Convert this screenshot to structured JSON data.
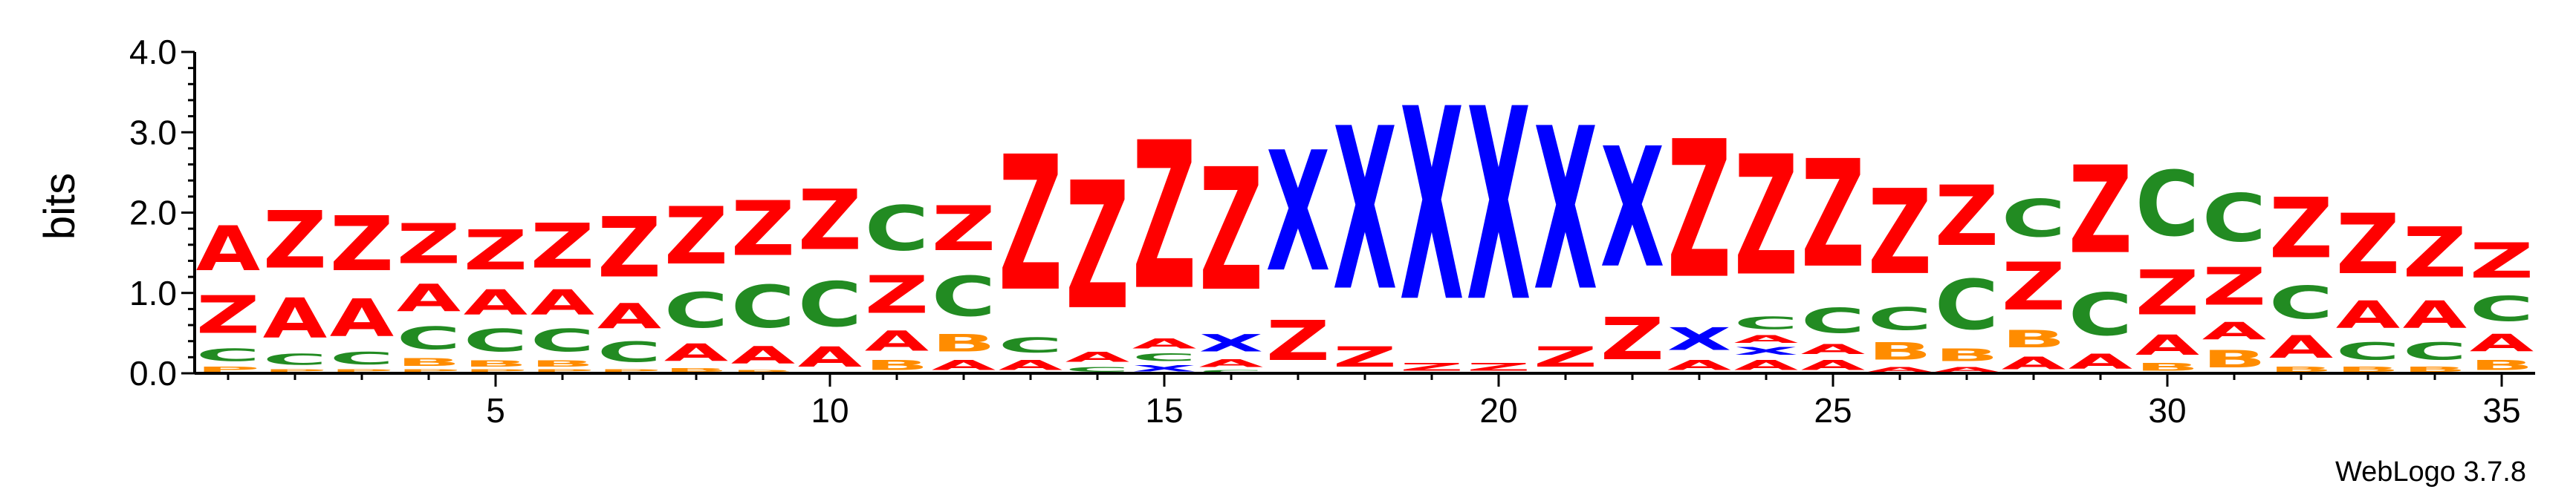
{
  "chart_data": {
    "type": "sequence-logo",
    "ylabel": "bits",
    "ylim": [
      0,
      4
    ],
    "y_ticks": [
      "0.0",
      "1.0",
      "2.0",
      "3.0",
      "4.0"
    ],
    "x_ticks": [
      5,
      10,
      15,
      20,
      25,
      30,
      35
    ],
    "x_range": [
      1,
      35
    ],
    "colors": {
      "A": "#ff0000",
      "Z": "#ff0000",
      "C": "#228b22",
      "B": "#ff8c00",
      "X": "#0000ff",
      "P": "#ff8c00"
    },
    "positions": [
      {
        "pos": 1,
        "letters": [
          {
            "l": "P",
            "h": 0.1
          },
          {
            "l": "C",
            "h": 0.25
          },
          {
            "l": "Z",
            "h": 0.75
          },
          {
            "l": "A",
            "h": 0.9
          }
        ]
      },
      {
        "pos": 2,
        "letters": [
          {
            "l": "P",
            "h": 0.06
          },
          {
            "l": "C",
            "h": 0.22
          },
          {
            "l": "A",
            "h": 0.8
          },
          {
            "l": "Z",
            "h": 1.15
          }
        ]
      },
      {
        "pos": 3,
        "letters": [
          {
            "l": "P",
            "h": 0.06
          },
          {
            "l": "C",
            "h": 0.25
          },
          {
            "l": "A",
            "h": 0.75
          },
          {
            "l": "Z",
            "h": 1.1
          }
        ]
      },
      {
        "pos": 4,
        "letters": [
          {
            "l": "P",
            "h": 0.06
          },
          {
            "l": "B",
            "h": 0.15
          },
          {
            "l": "C",
            "h": 0.45
          },
          {
            "l": "A",
            "h": 0.55
          },
          {
            "l": "Z",
            "h": 0.8
          }
        ]
      },
      {
        "pos": 5,
        "letters": [
          {
            "l": "P",
            "h": 0.06
          },
          {
            "l": "B",
            "h": 0.12
          },
          {
            "l": "C",
            "h": 0.45
          },
          {
            "l": "A",
            "h": 0.5
          },
          {
            "l": "Z",
            "h": 0.8
          }
        ]
      },
      {
        "pos": 6,
        "letters": [
          {
            "l": "P",
            "h": 0.06
          },
          {
            "l": "B",
            "h": 0.12
          },
          {
            "l": "C",
            "h": 0.45
          },
          {
            "l": "A",
            "h": 0.5
          },
          {
            "l": "Z",
            "h": 0.9
          }
        ]
      },
      {
        "pos": 7,
        "letters": [
          {
            "l": "P",
            "h": 0.06
          },
          {
            "l": "C",
            "h": 0.4
          },
          {
            "l": "A",
            "h": 0.5
          },
          {
            "l": "Z",
            "h": 1.2
          }
        ]
      },
      {
        "pos": 8,
        "letters": [
          {
            "l": "B",
            "h": 0.08
          },
          {
            "l": "A",
            "h": 0.35
          },
          {
            "l": "C",
            "h": 0.7
          },
          {
            "l": "Z",
            "h": 1.15
          }
        ]
      },
      {
        "pos": 9,
        "letters": [
          {
            "l": "B",
            "h": 0.05
          },
          {
            "l": "A",
            "h": 0.35
          },
          {
            "l": "C",
            "h": 0.85
          },
          {
            "l": "Z",
            "h": 1.1
          }
        ]
      },
      {
        "pos": 10,
        "letters": [
          {
            "l": "A",
            "h": 0.4
          },
          {
            "l": "C",
            "h": 0.9
          },
          {
            "l": "Z",
            "h": 1.2
          }
        ]
      },
      {
        "pos": 11,
        "letters": [
          {
            "l": "B",
            "h": 0.2
          },
          {
            "l": "A",
            "h": 0.4
          },
          {
            "l": "Z",
            "h": 0.75
          },
          {
            "l": "C",
            "h": 0.9
          }
        ]
      },
      {
        "pos": 12,
        "letters": [
          {
            "l": "A",
            "h": 0.2
          },
          {
            "l": "B",
            "h": 0.35
          },
          {
            "l": "C",
            "h": 0.8
          },
          {
            "l": "Z",
            "h": 0.9
          }
        ]
      },
      {
        "pos": 13,
        "letters": [
          {
            "l": "A",
            "h": 0.2
          },
          {
            "l": "C",
            "h": 0.3
          },
          {
            "l": "Z",
            "h": 2.7
          }
        ]
      },
      {
        "pos": 14,
        "letters": [
          {
            "l": "C",
            "h": 0.1
          },
          {
            "l": "A",
            "h": 0.2
          },
          {
            "l": "Z",
            "h": 2.55
          }
        ]
      },
      {
        "pos": 15,
        "letters": [
          {
            "l": "X",
            "h": 0.12
          },
          {
            "l": "C",
            "h": 0.15
          },
          {
            "l": "A",
            "h": 0.2
          },
          {
            "l": "Z",
            "h": 2.95
          }
        ]
      },
      {
        "pos": 16,
        "letters": [
          {
            "l": "C",
            "h": 0.05
          },
          {
            "l": "A",
            "h": 0.15
          },
          {
            "l": "X",
            "h": 0.35
          },
          {
            "l": "Z",
            "h": 2.45
          }
        ]
      },
      {
        "pos": 17,
        "letters": [
          {
            "l": "Z",
            "h": 0.8
          },
          {
            "l": "X",
            "h": 2.4
          }
        ]
      },
      {
        "pos": 18,
        "letters": [
          {
            "l": "Z",
            "h": 0.4
          },
          {
            "l": "X",
            "h": 3.25
          }
        ]
      },
      {
        "pos": 19,
        "letters": [
          {
            "l": "Z",
            "h": 0.15
          },
          {
            "l": "X",
            "h": 3.85
          }
        ]
      },
      {
        "pos": 20,
        "letters": [
          {
            "l": "Z",
            "h": 0.15
          },
          {
            "l": "X",
            "h": 3.85
          }
        ]
      },
      {
        "pos": 21,
        "letters": [
          {
            "l": "Z",
            "h": 0.4
          },
          {
            "l": "X",
            "h": 3.25
          }
        ]
      },
      {
        "pos": 22,
        "letters": [
          {
            "l": "Z",
            "h": 0.85
          },
          {
            "l": "X",
            "h": 2.4
          }
        ]
      },
      {
        "pos": 23,
        "letters": [
          {
            "l": "A",
            "h": 0.2
          },
          {
            "l": "X",
            "h": 0.45
          },
          {
            "l": "Z",
            "h": 2.75
          }
        ]
      },
      {
        "pos": 24,
        "letters": [
          {
            "l": "A",
            "h": 0.2
          },
          {
            "l": "X",
            "h": 0.15
          },
          {
            "l": "A",
            "h": 0.15
          },
          {
            "l": "C",
            "h": 0.25
          },
          {
            "l": "Z",
            "h": 2.4
          }
        ]
      },
      {
        "pos": 25,
        "letters": [
          {
            "l": "A",
            "h": 0.2
          },
          {
            "l": "A",
            "h": 0.2
          },
          {
            "l": "C",
            "h": 0.5
          },
          {
            "l": "Z",
            "h": 2.15
          }
        ]
      },
      {
        "pos": 26,
        "letters": [
          {
            "l": "A",
            "h": 0.1
          },
          {
            "l": "B",
            "h": 0.35
          },
          {
            "l": "C",
            "h": 0.45
          },
          {
            "l": "Z",
            "h": 1.7
          }
        ]
      },
      {
        "pos": 27,
        "letters": [
          {
            "l": "A",
            "h": 0.1
          },
          {
            "l": "B",
            "h": 0.25
          },
          {
            "l": "C",
            "h": 1.0
          },
          {
            "l": "Z",
            "h": 1.2
          }
        ]
      },
      {
        "pos": 28,
        "letters": [
          {
            "l": "A",
            "h": 0.25
          },
          {
            "l": "B",
            "h": 0.35
          },
          {
            "l": "Z",
            "h": 0.95
          },
          {
            "l": "C",
            "h": 0.75
          }
        ]
      },
      {
        "pos": 29,
        "letters": [
          {
            "l": "A",
            "h": 0.3
          },
          {
            "l": "C",
            "h": 0.85
          },
          {
            "l": "Z",
            "h": 1.75
          }
        ]
      },
      {
        "pos": 30,
        "letters": [
          {
            "l": "B",
            "h": 0.15
          },
          {
            "l": "A",
            "h": 0.4
          },
          {
            "l": "Z",
            "h": 0.9
          },
          {
            "l": "C",
            "h": 1.3
          }
        ]
      },
      {
        "pos": 31,
        "letters": [
          {
            "l": "B",
            "h": 0.35
          },
          {
            "l": "A",
            "h": 0.35
          },
          {
            "l": "Z",
            "h": 0.75
          },
          {
            "l": "C",
            "h": 0.95
          }
        ]
      },
      {
        "pos": 32,
        "letters": [
          {
            "l": "B",
            "h": 0.1
          },
          {
            "l": "A",
            "h": 0.45
          },
          {
            "l": "C",
            "h": 0.65
          },
          {
            "l": "Z",
            "h": 1.2
          }
        ]
      },
      {
        "pos": 33,
        "letters": [
          {
            "l": "B",
            "h": 0.1
          },
          {
            "l": "C",
            "h": 0.35
          },
          {
            "l": "A",
            "h": 0.55
          },
          {
            "l": "Z",
            "h": 1.2
          }
        ]
      },
      {
        "pos": 34,
        "letters": [
          {
            "l": "B",
            "h": 0.1
          },
          {
            "l": "C",
            "h": 0.35
          },
          {
            "l": "A",
            "h": 0.55
          },
          {
            "l": "Z",
            "h": 1.0
          }
        ]
      },
      {
        "pos": 35,
        "letters": [
          {
            "l": "B",
            "h": 0.2
          },
          {
            "l": "A",
            "h": 0.35
          },
          {
            "l": "C",
            "h": 0.5
          },
          {
            "l": "Z",
            "h": 0.7
          }
        ]
      }
    ]
  },
  "footer": {
    "version_label": "WebLogo 3.7.8"
  }
}
